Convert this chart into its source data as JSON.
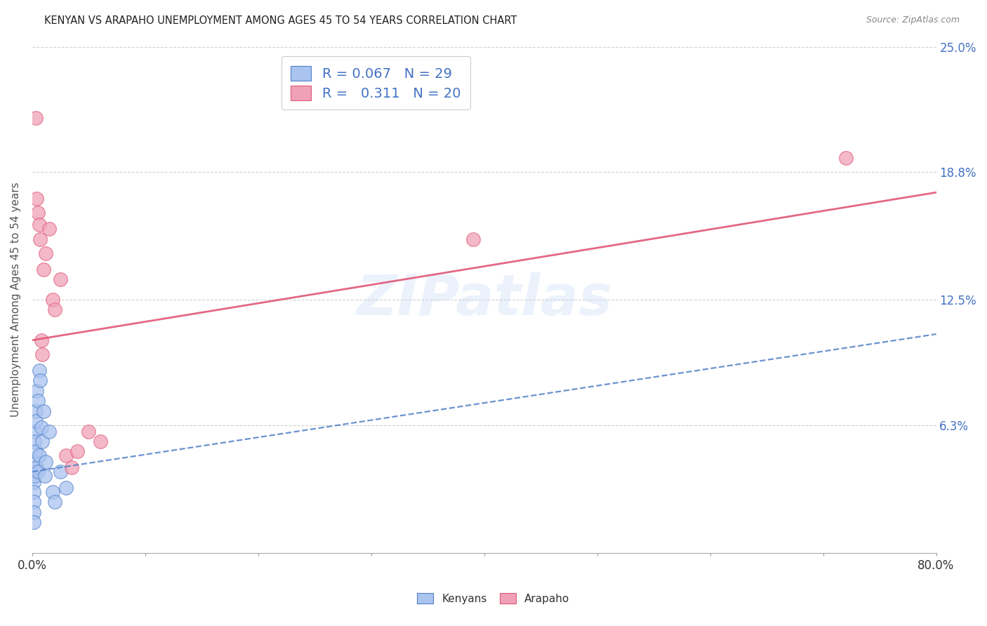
{
  "title": "KENYAN VS ARAPAHO UNEMPLOYMENT AMONG AGES 45 TO 54 YEARS CORRELATION CHART",
  "source": "Source: ZipAtlas.com",
  "ylabel": "Unemployment Among Ages 45 to 54 years",
  "xlim": [
    0.0,
    0.8
  ],
  "ylim": [
    0.0,
    0.25
  ],
  "xticks": [
    0.0,
    0.1,
    0.2,
    0.3,
    0.4,
    0.5,
    0.6,
    0.7,
    0.8
  ],
  "xtick_labels": [
    "0.0%",
    "",
    "",
    "",
    "",
    "",
    "",
    "",
    "80.0%"
  ],
  "yticks_right": [
    0.0,
    0.063,
    0.125,
    0.188,
    0.25
  ],
  "ytick_right_labels": [
    "",
    "6.3%",
    "12.5%",
    "18.8%",
    "25.0%"
  ],
  "watermark_text": "ZIPatlas",
  "legend_blue_R": "0.067",
  "legend_blue_N": "29",
  "legend_pink_R": "0.311",
  "legend_pink_N": "20",
  "legend_label_blue": "Kenyans",
  "legend_label_pink": "Arapaho",
  "blue_face_color": "#aac4f0",
  "pink_face_color": "#f0a0b8",
  "blue_line_color": "#5080c8",
  "pink_line_color": "#e05878",
  "blue_scatter_x": [
    0.001,
    0.001,
    0.001,
    0.001,
    0.001,
    0.002,
    0.002,
    0.002,
    0.002,
    0.003,
    0.003,
    0.003,
    0.004,
    0.004,
    0.005,
    0.005,
    0.006,
    0.006,
    0.007,
    0.008,
    0.009,
    0.01,
    0.011,
    0.012,
    0.015,
    0.018,
    0.02,
    0.025,
    0.03
  ],
  "blue_scatter_y": [
    0.035,
    0.03,
    0.025,
    0.02,
    0.015,
    0.06,
    0.055,
    0.045,
    0.038,
    0.07,
    0.065,
    0.05,
    0.08,
    0.042,
    0.075,
    0.04,
    0.09,
    0.048,
    0.085,
    0.062,
    0.055,
    0.07,
    0.038,
    0.045,
    0.06,
    0.03,
    0.025,
    0.04,
    0.032
  ],
  "pink_scatter_x": [
    0.003,
    0.004,
    0.005,
    0.006,
    0.007,
    0.008,
    0.009,
    0.01,
    0.012,
    0.015,
    0.018,
    0.02,
    0.025,
    0.03,
    0.035,
    0.04,
    0.05,
    0.06,
    0.39,
    0.72
  ],
  "pink_scatter_y": [
    0.215,
    0.175,
    0.168,
    0.162,
    0.155,
    0.105,
    0.098,
    0.14,
    0.148,
    0.16,
    0.125,
    0.12,
    0.135,
    0.048,
    0.042,
    0.05,
    0.06,
    0.055,
    0.155,
    0.195
  ],
  "blue_trend_y0": 0.04,
  "blue_trend_y1": 0.108,
  "pink_trend_y0": 0.105,
  "pink_trend_y1": 0.178,
  "background_color": "#ffffff",
  "grid_color": "#cccccc"
}
